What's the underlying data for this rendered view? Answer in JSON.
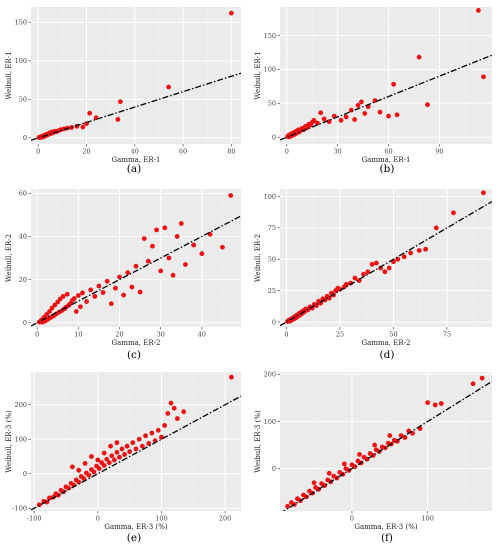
{
  "chart_data": [
    {
      "id": "a",
      "type": "scatter",
      "panel_label": "(a)",
      "xlabel": "Gamma, ER-1",
      "ylabel": "Weibull, ER-1",
      "xlim": [
        -3,
        84
      ],
      "ylim": [
        -8,
        170
      ],
      "xticks": [
        0,
        20,
        40,
        60,
        80
      ],
      "yticks": [
        0,
        50,
        100,
        150
      ],
      "fit_line": {
        "slope": 1.0,
        "intercept": 0
      },
      "points": [
        [
          0.3,
          0.5
        ],
        [
          0.6,
          1
        ],
        [
          1,
          0.4
        ],
        [
          1.3,
          1.8
        ],
        [
          1.7,
          2.2
        ],
        [
          2,
          1.2
        ],
        [
          2.4,
          3
        ],
        [
          2.8,
          2.4
        ],
        [
          3.1,
          4.2
        ],
        [
          3.5,
          3.3
        ],
        [
          3.9,
          5
        ],
        [
          4.2,
          4.4
        ],
        [
          4.6,
          6.2
        ],
        [
          5.1,
          5.2
        ],
        [
          5.6,
          7.6
        ],
        [
          6.1,
          6.6
        ],
        [
          6.8,
          8.6
        ],
        [
          7.5,
          8
        ],
        [
          8.2,
          9
        ],
        [
          9.2,
          10.5
        ],
        [
          10.5,
          11.5
        ],
        [
          12,
          12.6
        ],
        [
          13.8,
          13.5
        ],
        [
          16,
          15
        ],
        [
          18.5,
          14
        ],
        [
          20,
          18.5
        ],
        [
          21.3,
          32
        ],
        [
          24,
          26
        ],
        [
          33,
          24
        ],
        [
          34,
          47
        ],
        [
          54,
          66
        ],
        [
          80,
          162
        ]
      ]
    },
    {
      "id": "b",
      "type": "scatter",
      "panel_label": "(b)",
      "xlabel": "Gamma, ER-1",
      "ylabel": "Weibull, ER-1",
      "xlim": [
        -4,
        121
      ],
      "ylim": [
        -10,
        192
      ],
      "xticks": [
        0,
        30,
        60,
        90
      ],
      "yticks": [
        0,
        50,
        100,
        150
      ],
      "fit_line": {
        "slope": 1.0,
        "intercept": 0
      },
      "points": [
        [
          0.5,
          1
        ],
        [
          1,
          2.5
        ],
        [
          1.5,
          0.5
        ],
        [
          2,
          4
        ],
        [
          2.5,
          1.8
        ],
        [
          3,
          5.5
        ],
        [
          3.5,
          3
        ],
        [
          4,
          6.5
        ],
        [
          4.5,
          4.2
        ],
        [
          5,
          8
        ],
        [
          5.5,
          5.5
        ],
        [
          6,
          9.5
        ],
        [
          6.5,
          7
        ],
        [
          7,
          11
        ],
        [
          7.5,
          8.2
        ],
        [
          8,
          10
        ],
        [
          9,
          13
        ],
        [
          10,
          11
        ],
        [
          11,
          16
        ],
        [
          12,
          14
        ],
        [
          13,
          19
        ],
        [
          14,
          18
        ],
        [
          15,
          22
        ],
        [
          16,
          25
        ],
        [
          18,
          21
        ],
        [
          20,
          36
        ],
        [
          22,
          27
        ],
        [
          25,
          23
        ],
        [
          28,
          31
        ],
        [
          32,
          25
        ],
        [
          35,
          30
        ],
        [
          38,
          40
        ],
        [
          40,
          26
        ],
        [
          42,
          47
        ],
        [
          44,
          52
        ],
        [
          46,
          35
        ],
        [
          48,
          45
        ],
        [
          52,
          54
        ],
        [
          55,
          37
        ],
        [
          60,
          31
        ],
        [
          63,
          78
        ],
        [
          65,
          33
        ],
        [
          78,
          118
        ],
        [
          83,
          48
        ],
        [
          113,
          187
        ],
        [
          116,
          89
        ]
      ]
    },
    {
      "id": "c",
      "type": "scatter",
      "panel_label": "(c)",
      "xlabel": "Gamma, ER-2",
      "ylabel": "Weibull, ER-2",
      "xlim": [
        -1.5,
        49.5
      ],
      "ylim": [
        -2,
        62
      ],
      "xticks": [
        0,
        10,
        20,
        30,
        40,
        50
      ],
      "yticks": [
        0,
        20,
        40,
        60
      ],
      "fit_line": {
        "slope": 1.0,
        "intercept": 0
      },
      "points": [
        [
          0.5,
          0.3
        ],
        [
          1,
          1.2
        ],
        [
          1.3,
          0.2
        ],
        [
          1.6,
          2.4
        ],
        [
          2,
          0.8
        ],
        [
          2.3,
          3.8
        ],
        [
          2.6,
          1.6
        ],
        [
          3,
          5.2
        ],
        [
          3.3,
          2.4
        ],
        [
          3.6,
          6.8
        ],
        [
          4,
          3.2
        ],
        [
          4.3,
          8.2
        ],
        [
          4.6,
          4
        ],
        [
          5,
          9.6
        ],
        [
          5.3,
          4.8
        ],
        [
          5.6,
          11
        ],
        [
          6,
          5.6
        ],
        [
          6.3,
          12.2
        ],
        [
          6.6,
          6.4
        ],
        [
          7,
          7.2
        ],
        [
          7.3,
          13.2
        ],
        [
          7.6,
          8
        ],
        [
          8,
          8.8
        ],
        [
          8.5,
          10.2
        ],
        [
          9,
          11.2
        ],
        [
          9.5,
          5.2
        ],
        [
          10,
          12.6
        ],
        [
          10.5,
          7.4
        ],
        [
          11,
          13.8
        ],
        [
          12,
          9.8
        ],
        [
          13,
          15.2
        ],
        [
          14,
          12.2
        ],
        [
          15,
          17
        ],
        [
          16,
          14
        ],
        [
          17,
          19.2
        ],
        [
          18,
          8.8
        ],
        [
          19,
          16
        ],
        [
          20,
          21.2
        ],
        [
          21,
          12.8
        ],
        [
          22,
          23.2
        ],
        [
          23,
          16.5
        ],
        [
          24,
          26.2
        ],
        [
          25,
          14.2
        ],
        [
          26,
          39
        ],
        [
          27,
          28.5
        ],
        [
          28,
          35.5
        ],
        [
          29,
          43
        ],
        [
          30,
          24
        ],
        [
          31,
          44
        ],
        [
          32,
          30
        ],
        [
          33,
          22
        ],
        [
          34,
          40
        ],
        [
          35,
          46
        ],
        [
          36,
          27
        ],
        [
          38,
          36
        ],
        [
          40,
          32
        ],
        [
          42,
          41
        ],
        [
          45,
          35
        ],
        [
          47,
          59
        ]
      ]
    },
    {
      "id": "d",
      "type": "scatter",
      "panel_label": "(d)",
      "xlabel": "Gamma, ER-2",
      "ylabel": "Weibull, ER-2",
      "xlim": [
        -3,
        96
      ],
      "ylim": [
        -4,
        106
      ],
      "xticks": [
        0,
        25,
        50,
        75
      ],
      "yticks": [
        0,
        25,
        50,
        75,
        100
      ],
      "fit_line": {
        "slope": 1.0,
        "intercept": 0
      },
      "points": [
        [
          0.5,
          0.4
        ],
        [
          1,
          1.3
        ],
        [
          1.5,
          0.6
        ],
        [
          2,
          2.2
        ],
        [
          2.5,
          1.4
        ],
        [
          3,
          3.3
        ],
        [
          3.5,
          2.4
        ],
        [
          4,
          4.4
        ],
        [
          4.5,
          3.4
        ],
        [
          5,
          5.6
        ],
        [
          5.5,
          4.6
        ],
        [
          6,
          6.8
        ],
        [
          6.5,
          5.8
        ],
        [
          7,
          8
        ],
        [
          7.5,
          7
        ],
        [
          8,
          9
        ],
        [
          8.5,
          8.2
        ],
        [
          9,
          10.4
        ],
        [
          10,
          9.6
        ],
        [
          11,
          12
        ],
        [
          12,
          11
        ],
        [
          13,
          14
        ],
        [
          14,
          13
        ],
        [
          15,
          16.5
        ],
        [
          16,
          15
        ],
        [
          17,
          18.5
        ],
        [
          18,
          17.5
        ],
        [
          19,
          20.5
        ],
        [
          20,
          19
        ],
        [
          21,
          23
        ],
        [
          22,
          21.5
        ],
        [
          23,
          25
        ],
        [
          24,
          27
        ],
        [
          25,
          26
        ],
        [
          27,
          28
        ],
        [
          28,
          30
        ],
        [
          30,
          31
        ],
        [
          32,
          35
        ],
        [
          34,
          33
        ],
        [
          36,
          38
        ],
        [
          38,
          40
        ],
        [
          40,
          46
        ],
        [
          42,
          47
        ],
        [
          44,
          43
        ],
        [
          46,
          40
        ],
        [
          48,
          43
        ],
        [
          50,
          48
        ],
        [
          52,
          50
        ],
        [
          55,
          52
        ],
        [
          58,
          55
        ],
        [
          62,
          57
        ],
        [
          65,
          58
        ],
        [
          70,
          75
        ],
        [
          78,
          87
        ],
        [
          92,
          103
        ]
      ]
    },
    {
      "id": "e",
      "type": "scatter",
      "panel_label": "(e)",
      "xlabel": "Gamma, ER-3 (%)",
      "ylabel": "Weibull, ER-3 (%)",
      "xlim": [
        -105,
        225
      ],
      "ylim": [
        -108,
        295
      ],
      "xticks": [
        -100,
        0,
        100,
        200
      ],
      "yticks": [
        -100,
        0,
        100,
        200
      ],
      "fit_line": {
        "slope": 1.0,
        "intercept": 0
      },
      "points": [
        [
          -92,
          -90
        ],
        [
          -85,
          -80
        ],
        [
          -80,
          -82
        ],
        [
          -76,
          -70
        ],
        [
          -70,
          -68
        ],
        [
          -66,
          -58
        ],
        [
          -62,
          -62
        ],
        [
          -58,
          -48
        ],
        [
          -54,
          -52
        ],
        [
          -50,
          -38
        ],
        [
          -46,
          -42
        ],
        [
          -42,
          -28
        ],
        [
          -38,
          -33
        ],
        [
          -34,
          -18
        ],
        [
          -30,
          -24
        ],
        [
          -26,
          -8
        ],
        [
          -22,
          -14
        ],
        [
          -18,
          2
        ],
        [
          -14,
          -4
        ],
        [
          -10,
          12
        ],
        [
          -6,
          5
        ],
        [
          -2,
          22
        ],
        [
          2,
          15
        ],
        [
          6,
          32
        ],
        [
          10,
          24
        ],
        [
          14,
          42
        ],
        [
          18,
          32
        ],
        [
          22,
          52
        ],
        [
          26,
          40
        ],
        [
          30,
          62
        ],
        [
          34,
          48
        ],
        [
          38,
          72
        ],
        [
          42,
          56
        ],
        [
          46,
          80
        ],
        [
          50,
          64
        ],
        [
          55,
          90
        ],
        [
          60,
          72
        ],
        [
          65,
          100
        ],
        [
          70,
          80
        ],
        [
          75,
          110
        ],
        [
          80,
          88
        ],
        [
          85,
          118
        ],
        [
          90,
          96
        ],
        [
          95,
          126
        ],
        [
          100,
          106
        ],
        [
          105,
          140
        ],
        [
          110,
          175
        ],
        [
          115,
          205
        ],
        [
          120,
          190
        ],
        [
          125,
          160
        ],
        [
          135,
          180
        ],
        [
          210,
          280
        ],
        [
          -40,
          20
        ],
        [
          -20,
          30
        ],
        [
          -10,
          50
        ],
        [
          0,
          40
        ],
        [
          10,
          60
        ],
        [
          20,
          80
        ],
        [
          -30,
          10
        ],
        [
          30,
          90
        ]
      ]
    },
    {
      "id": "f",
      "type": "scatter",
      "panel_label": "(f)",
      "xlabel": "Gamma, ER-3 (%)",
      "ylabel": "Weibull, ER-3 (%)",
      "xlim": [
        -95,
        185
      ],
      "ylim": [
        -90,
        205
      ],
      "xticks": [
        0,
        100
      ],
      "yticks": [
        0,
        100,
        200
      ],
      "fit_line": {
        "slope": 1.0,
        "intercept": 0
      },
      "points": [
        [
          -85,
          -80
        ],
        [
          -80,
          -72
        ],
        [
          -76,
          -76
        ],
        [
          -72,
          -64
        ],
        [
          -68,
          -68
        ],
        [
          -64,
          -56
        ],
        [
          -60,
          -60
        ],
        [
          -56,
          -48
        ],
        [
          -52,
          -52
        ],
        [
          -48,
          -40
        ],
        [
          -44,
          -44
        ],
        [
          -40,
          -32
        ],
        [
          -36,
          -36
        ],
        [
          -32,
          -24
        ],
        [
          -28,
          -28
        ],
        [
          -24,
          -16
        ],
        [
          -20,
          -20
        ],
        [
          -16,
          -8
        ],
        [
          -12,
          -12
        ],
        [
          -8,
          0
        ],
        [
          -4,
          -4
        ],
        [
          0,
          8
        ],
        [
          4,
          4
        ],
        [
          8,
          16
        ],
        [
          12,
          12
        ],
        [
          16,
          24
        ],
        [
          20,
          20
        ],
        [
          24,
          32
        ],
        [
          28,
          28
        ],
        [
          32,
          40
        ],
        [
          36,
          36
        ],
        [
          40,
          46
        ],
        [
          44,
          44
        ],
        [
          48,
          54
        ],
        [
          52,
          52
        ],
        [
          56,
          60
        ],
        [
          60,
          58
        ],
        [
          65,
          70
        ],
        [
          70,
          66
        ],
        [
          75,
          80
        ],
        [
          80,
          75
        ],
        [
          90,
          85
        ],
        [
          100,
          140
        ],
        [
          110,
          135
        ],
        [
          118,
          138
        ],
        [
          160,
          180
        ],
        [
          172,
          192
        ],
        [
          -50,
          -30
        ],
        [
          -30,
          -10
        ],
        [
          -10,
          10
        ],
        [
          10,
          30
        ],
        [
          30,
          50
        ],
        [
          50,
          70
        ]
      ]
    }
  ]
}
